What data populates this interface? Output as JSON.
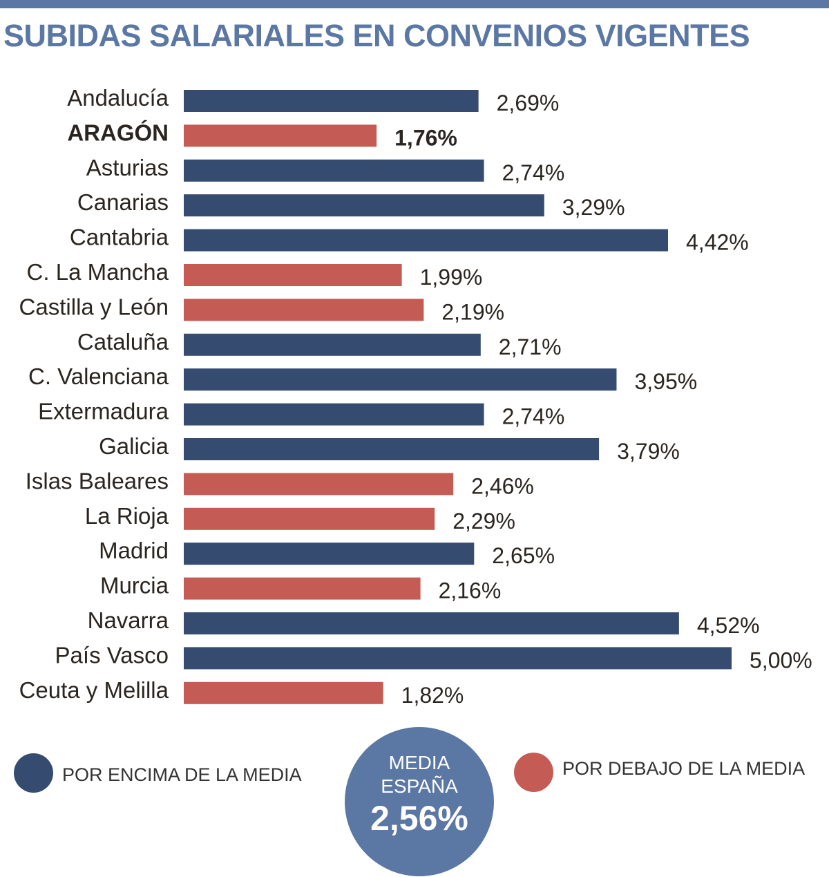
{
  "title": "SUBIDAS SALARIALES EN CONVENIOS VIGENTES",
  "colors": {
    "above": "#354b6f",
    "below": "#c45c55",
    "accent": "#5b77a3"
  },
  "chart_data": {
    "type": "bar",
    "orientation": "horizontal",
    "categories": [
      "Andalucía",
      "ARAGÓN",
      "Asturias",
      "Canarias",
      "Cantabria",
      "C. La Mancha",
      "Castilla y León",
      "Cataluña",
      "C. Valenciana",
      "Extermadura",
      "Galicia",
      "Islas Baleares",
      "La Rioja",
      "Madrid",
      "Murcia",
      "Navarra",
      "País Vasco",
      "Ceuta y Melilla"
    ],
    "values": [
      2.69,
      1.76,
      2.74,
      3.29,
      4.42,
      1.99,
      2.19,
      2.71,
      3.95,
      2.74,
      3.79,
      2.46,
      2.29,
      2.65,
      2.16,
      4.52,
      5.0,
      1.82
    ],
    "value_labels": [
      "2,69%",
      "1,76%",
      "2,74%",
      "3,29%",
      "4,42%",
      "1,99%",
      "2,19%",
      "2,71%",
      "3,95%",
      "2,74%",
      "3,79%",
      "2,46%",
      "2,29%",
      "2,65%",
      "2,16%",
      "4,52%",
      "5,00%",
      "1,82%"
    ],
    "group": [
      "above",
      "below",
      "above",
      "above",
      "above",
      "below",
      "below",
      "above",
      "above",
      "above",
      "above",
      "below",
      "below",
      "above",
      "below",
      "above",
      "above",
      "below"
    ],
    "highlight": "ARAGÓN",
    "xlim": [
      0,
      5
    ],
    "grid": false
  },
  "legend": {
    "above": "POR ENCIMA DE LA MEDIA",
    "below": "POR DEBAJO DE LA MEDIA"
  },
  "average": {
    "line1": "MEDIA",
    "line2": "ESPAÑA",
    "value": "2,56%"
  }
}
